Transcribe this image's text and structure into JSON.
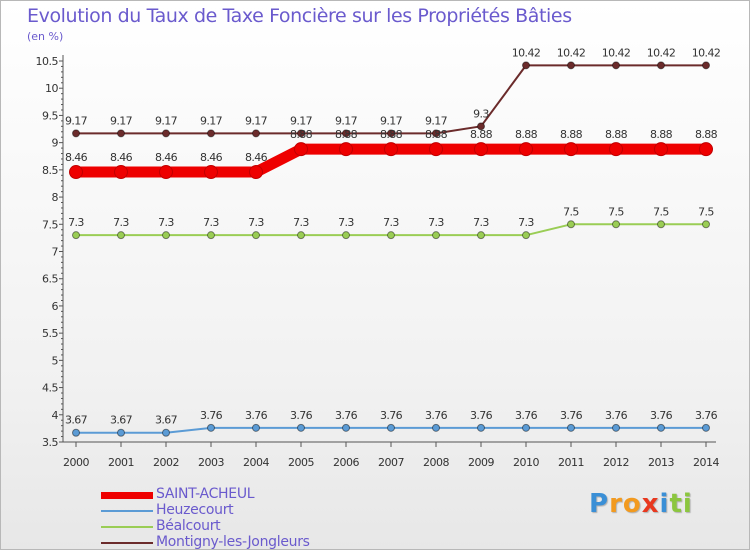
{
  "header": {
    "title": "Evolution du Taux de Taxe Foncière sur les Propriétés Bâties",
    "unit": "(en %)"
  },
  "chart_data": {
    "type": "line",
    "title": "Evolution du Taux de Taxe Foncière sur les Propriétés Bâties",
    "ylabel": "(en %)",
    "xlabel": "",
    "x": [
      "2000",
      "2001",
      "2002",
      "2003",
      "2004",
      "2005",
      "2006",
      "2007",
      "2008",
      "2009",
      "2010",
      "2011",
      "2012",
      "2013",
      "2014"
    ],
    "y_ticks": [
      3.5,
      4,
      4.5,
      5,
      5.5,
      6,
      6.5,
      7,
      7.5,
      8,
      8.5,
      9,
      9.5,
      10,
      10.5
    ],
    "ylim": [
      3.5,
      10.5
    ],
    "grid": false,
    "series": [
      {
        "name": "Montigny-les-Jongleurs",
        "color": "#6b2b2b",
        "values": [
          9.17,
          9.17,
          9.17,
          9.17,
          9.17,
          9.17,
          9.17,
          9.17,
          9.17,
          9.3,
          10.42,
          10.42,
          10.42,
          10.42,
          10.42
        ],
        "labels": [
          "9.17",
          "9.17",
          "9.17",
          "9.17",
          "9.17",
          "9.17",
          "9.17",
          "9.17",
          "9.17",
          "9.3",
          "10.42",
          "10.42",
          "10.42",
          "10.42",
          "10.42"
        ]
      },
      {
        "name": "Béalcourt",
        "color": "#9acd55",
        "values": [
          7.3,
          7.3,
          7.3,
          7.3,
          7.3,
          7.3,
          7.3,
          7.3,
          7.3,
          7.3,
          7.3,
          7.5,
          7.5,
          7.5,
          7.5
        ],
        "labels": [
          "7.3",
          "7.3",
          "7.3",
          "7.3",
          "7.3",
          "7.3",
          "7.3",
          "7.3",
          "7.3",
          "7.3",
          "7.3",
          "7.5",
          "7.5",
          "7.5",
          "7.5"
        ]
      },
      {
        "name": "Heuzecourt",
        "color": "#5b9bd5",
        "values": [
          3.67,
          3.67,
          3.67,
          3.76,
          3.76,
          3.76,
          3.76,
          3.76,
          3.76,
          3.76,
          3.76,
          3.76,
          3.76,
          3.76,
          3.76
        ],
        "labels": [
          "3.67",
          "3.67",
          "3.67",
          "3.76",
          "3.76",
          "3.76",
          "3.76",
          "3.76",
          "3.76",
          "3.76",
          "3.76",
          "3.76",
          "3.76",
          "3.76",
          "3.76"
        ]
      },
      {
        "name": "SAINT-ACHEUL",
        "color": "#ee0000",
        "highlight": true,
        "values": [
          8.46,
          8.46,
          8.46,
          8.46,
          8.46,
          8.88,
          8.88,
          8.88,
          8.88,
          8.88,
          8.88,
          8.88,
          8.88,
          8.88,
          8.88
        ],
        "labels": [
          "8.46",
          "8.46",
          "8.46",
          "8.46",
          "8.46",
          "8.88",
          "8.88",
          "8.88",
          "8.88",
          "8.88",
          "8.88",
          "8.88",
          "8.88",
          "8.88",
          "8.88"
        ]
      }
    ]
  },
  "legend": {
    "items": [
      {
        "label": "SAINT-ACHEUL",
        "color": "#ee0000"
      },
      {
        "label": "Heuzecourt",
        "color": "#5b9bd5"
      },
      {
        "label": "Béalcourt",
        "color": "#9acd55"
      },
      {
        "label": "Montigny-les-Jongleurs",
        "color": "#6b2b2b"
      }
    ]
  },
  "logo": {
    "letters": [
      "P",
      "r",
      "o",
      "x",
      "i",
      "t",
      "i"
    ],
    "colors": [
      "#3a8fd6",
      "#f29a1f",
      "#f29a1f",
      "#e8381f",
      "#3a8fd6",
      "#8cc63f",
      "#8cc63f"
    ]
  }
}
